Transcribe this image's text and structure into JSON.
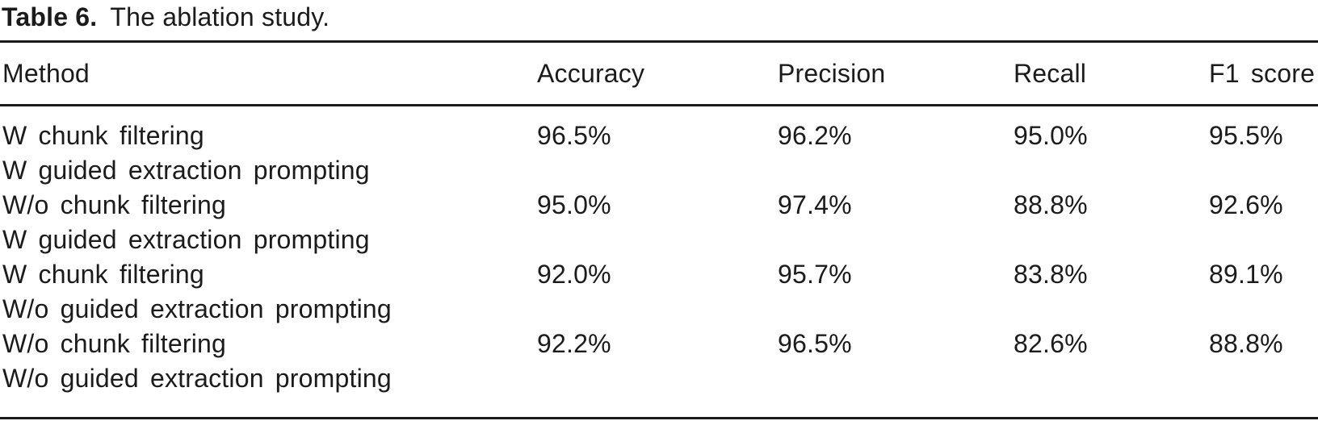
{
  "caption": {
    "label": "Table 6.",
    "text": "The ablation study."
  },
  "table": {
    "columns": [
      "Method",
      "Accuracy",
      "Precision",
      "Recall",
      "F1 score"
    ],
    "rows": [
      {
        "method_line1": "W chunk filtering",
        "method_line2": "W guided extraction prompting",
        "accuracy": "96.5%",
        "precision": "96.2%",
        "recall": "95.0%",
        "f1": "95.5%"
      },
      {
        "method_line1": "W/o chunk filtering",
        "method_line2": "W guided extraction prompting",
        "accuracy": "95.0%",
        "precision": "97.4%",
        "recall": "88.8%",
        "f1": "92.6%"
      },
      {
        "method_line1": "W chunk filtering",
        "method_line2": "W/o guided extraction prompting",
        "accuracy": "92.0%",
        "precision": "95.7%",
        "recall": "83.8%",
        "f1": "89.1%"
      },
      {
        "method_line1": "W/o chunk filtering",
        "method_line2": "W/o guided extraction prompting",
        "accuracy": "92.2%",
        "precision": "96.5%",
        "recall": "82.6%",
        "f1": "88.8%"
      }
    ]
  },
  "colors": {
    "text": "#1b1b1b",
    "rule": "#1b1b1b",
    "background": "#ffffff"
  }
}
